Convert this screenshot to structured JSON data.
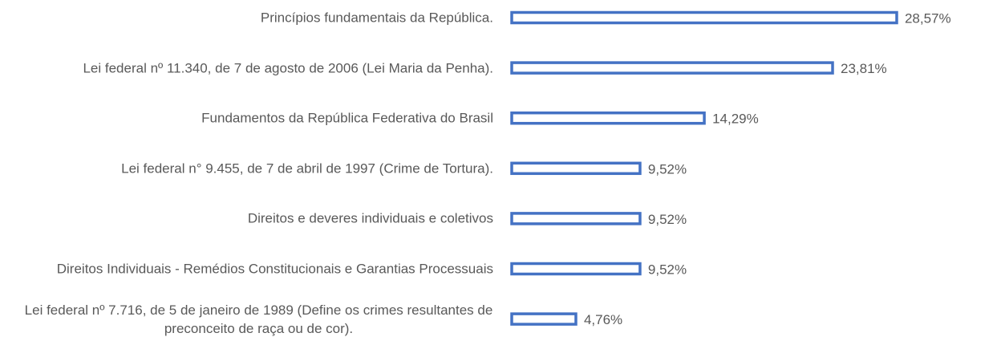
{
  "chart_data": {
    "type": "hbar",
    "categories": [
      "Princípios fundamentais da República.",
      "Lei federal nº 11.340, de 7 de agosto de 2006 (Lei Maria da Penha).",
      "Fundamentos da República Federativa do Brasil",
      "Lei federal n° 9.455, de 7 de abril de 1997 (Crime de Tortura).",
      "Direitos e deveres individuais e coletivos",
      "Direitos Individuais - Remédios Constitucionais e Garantias Processuais",
      "Lei federal nº 7.716, de 5 de janeiro de 1989 (Define os crimes resultantes de preconceito de raça ou de cor)."
    ],
    "values": [
      28.57,
      23.81,
      14.29,
      9.52,
      9.52,
      9.52,
      4.76
    ],
    "value_labels": [
      "28,57%",
      "23,81%",
      "14,29%",
      "9,52%",
      "9,52%",
      "9,52%",
      "4,76%"
    ],
    "color": "#4472c4"
  }
}
